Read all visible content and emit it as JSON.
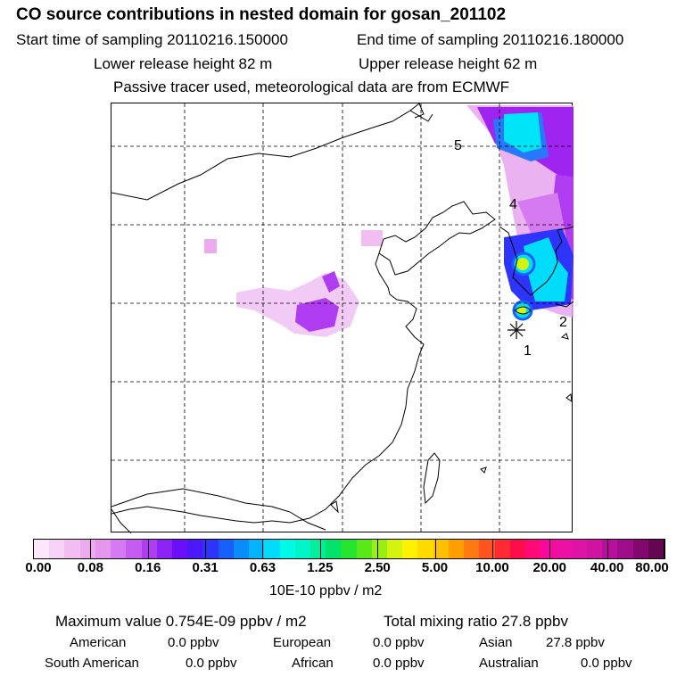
{
  "header": {
    "title": "CO  source contributions in nested domain for gosan_201102",
    "start_label": "Start time of sampling 20110216.150000",
    "end_label": "End time of sampling 20110216.180000",
    "lower_label": "Lower release height   82 m",
    "upper_label": "Upper release height   62 m",
    "info": "Passive tracer used, meteorological data are from ECMWF"
  },
  "map": {
    "markers": [
      "1",
      "2",
      "4",
      "5"
    ]
  },
  "colorbar": {
    "colors": [
      "#fbe6fb",
      "#f7d2f7",
      "#f2bef2",
      "#eeaaee",
      "#e596ed",
      "#d57af0",
      "#c45cf2",
      "#b03cf2",
      "#8c22f4",
      "#6a10f8",
      "#4c18fa",
      "#2f34fb",
      "#1860fb",
      "#0a8cfb",
      "#02b4fb",
      "#00dcfa",
      "#00fae8",
      "#00f6c8",
      "#00ee9e",
      "#00e46c",
      "#24e430",
      "#5ae81a",
      "#9aee14",
      "#d2f40e",
      "#fff200",
      "#ffdc00",
      "#ffc000",
      "#ffa000",
      "#ff7a10",
      "#ff5420",
      "#ff2a34",
      "#ff0c4a",
      "#ff0a78",
      "#f8089e",
      "#ee10a4",
      "#e014a4",
      "#ce14a0",
      "#b8109c",
      "#9e0c8a",
      "#82086e",
      "#640652"
    ],
    "tick_labels": [
      "0.00",
      "0.08",
      "0.16",
      "0.31",
      "0.63",
      "1.25",
      "2.50",
      "5.00",
      "10.00",
      "20.00",
      "40.00",
      "80.00"
    ],
    "unit": "10E-10 ppbv / m2"
  },
  "summary": {
    "max_value": "Maximum value  0.754E-09 ppbv / m2",
    "total_mixing": "Total mixing ratio       27.8 ppbv",
    "american_label": "American",
    "american_value": "0.0 ppbv",
    "european_label": "European",
    "european_value": "0.0 ppbv",
    "asian_label": "Asian",
    "asian_value": "27.8 ppbv",
    "south_american_label": "South American",
    "south_american_value": "0.0 ppbv",
    "african_label": "African",
    "african_value": "0.0 ppbv",
    "australian_label": "Australian",
    "australian_value": "0.0 ppbv"
  }
}
